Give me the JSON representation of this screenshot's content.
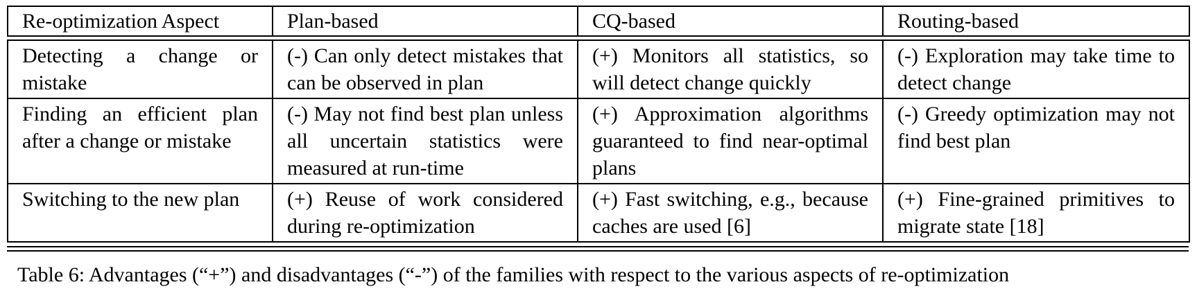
{
  "table": {
    "headers": [
      "Re-optimization Aspect",
      "Plan-based",
      "CQ-based",
      "Routing-based"
    ],
    "rows": [
      {
        "aspect": "Detecting a change or mistake",
        "plan_based": "(-) Can only detect mistakes that can be observed in plan",
        "cq_based": "(+) Monitors all statistics, so will detect change quickly",
        "routing_based": "(-) Exploration may take time to detect change"
      },
      {
        "aspect": "Finding an efficient plan after a change or mistake",
        "plan_based": "(-) May not find best plan unless all uncertain statistics were measured at run-time",
        "cq_based": "(+) Approximation algorithms guaranteed to find near-optimal plans",
        "routing_based": "(-) Greedy optimization may not find best plan"
      },
      {
        "aspect": "Switching to the new plan",
        "plan_based": "(+) Reuse of work considered during re-optimization",
        "cq_based": "(+) Fast switching, e.g., because caches are used [6]",
        "routing_based": "(+) Fine-grained primitives to migrate state [18]"
      }
    ]
  },
  "caption": "Table 6: Advantages (“+”) and disadvantages (“-”) of the families with respect to the various aspects of re-optimization"
}
